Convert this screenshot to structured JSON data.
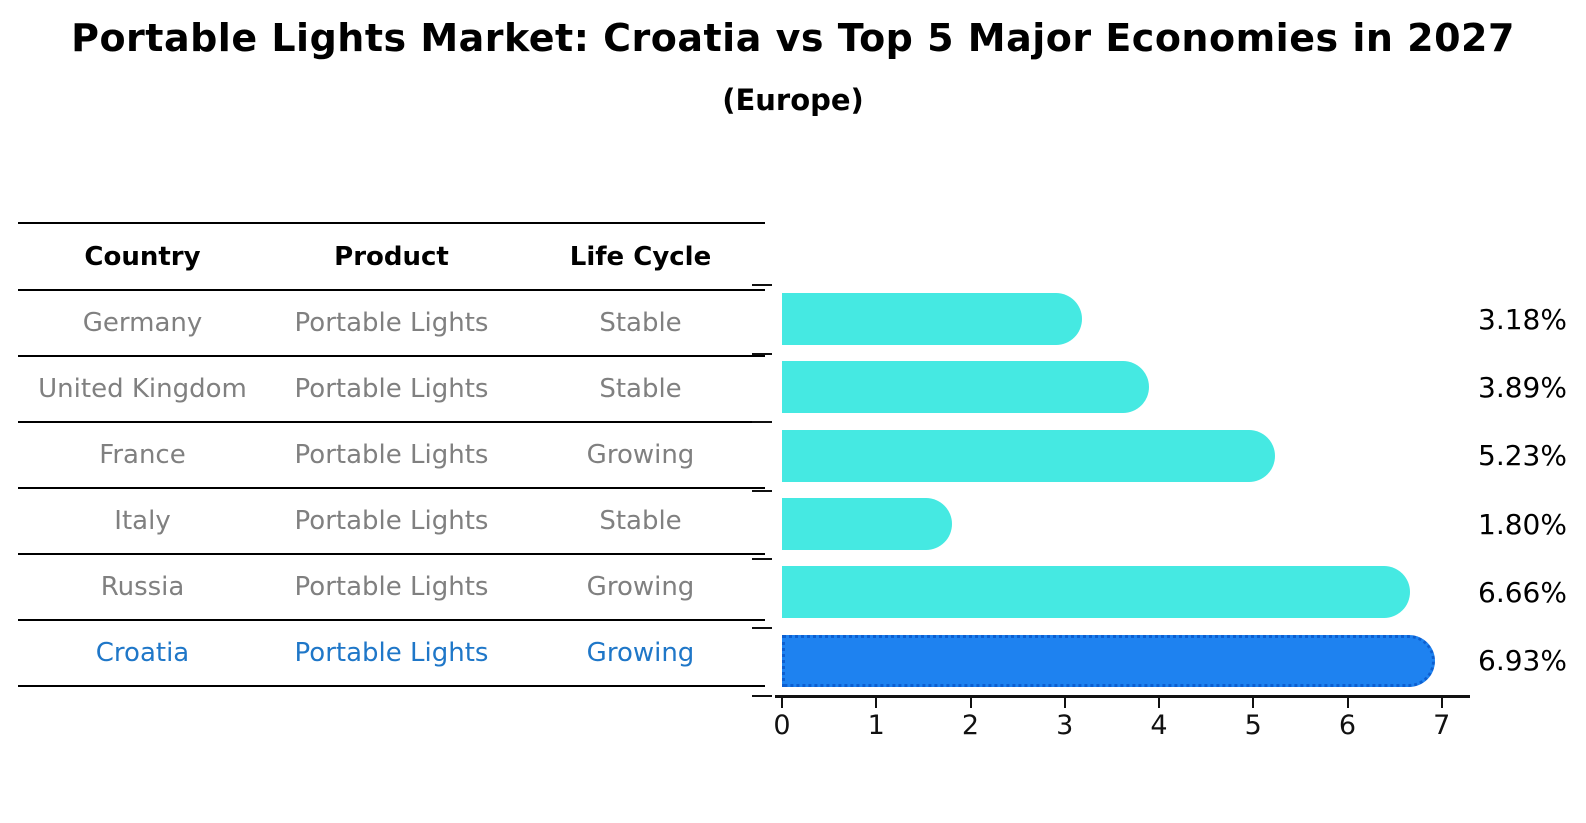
{
  "title": "Portable Lights Market: Croatia vs Top 5 Major Economies in 2027",
  "subtitle": "(Europe)",
  "table": {
    "headers": [
      "Country",
      "Product",
      "Life Cycle"
    ],
    "rows": [
      {
        "country": "Germany",
        "product": "Portable Lights",
        "life_cycle": "Stable",
        "highlight": false
      },
      {
        "country": "United Kingdom",
        "product": "Portable Lights",
        "life_cycle": "Stable",
        "highlight": false
      },
      {
        "country": "France",
        "product": "Portable Lights",
        "life_cycle": "Growing",
        "highlight": false
      },
      {
        "country": "Italy",
        "product": "Portable Lights",
        "life_cycle": "Stable",
        "highlight": false
      },
      {
        "country": "Russia",
        "product": "Portable Lights",
        "life_cycle": "Growing",
        "highlight": false
      },
      {
        "country": "Croatia",
        "product": "Portable Lights",
        "life_cycle": "Growing",
        "highlight": true
      }
    ]
  },
  "chart_data": {
    "type": "bar",
    "orientation": "horizontal",
    "title": "Portable Lights Market: Croatia vs Top 5 Major Economies in 2027 (Europe)",
    "categories": [
      "Germany",
      "United Kingdom",
      "France",
      "Italy",
      "Russia",
      "Croatia"
    ],
    "values": [
      3.18,
      3.89,
      5.23,
      1.8,
      6.66,
      6.93
    ],
    "value_labels": [
      "3.18%",
      "3.89%",
      "5.23%",
      "1.80%",
      "6.66%",
      "6.93%"
    ],
    "units": "%",
    "xlabel": "",
    "ylabel": "",
    "xlim": [
      0,
      7.3
    ],
    "xticks": [
      0,
      1,
      2,
      3,
      4,
      5,
      6,
      7
    ],
    "grid": false,
    "legend": "none",
    "highlight_index": 5,
    "bar_color": "#45e9e2",
    "highlight_bar_color": "#1e82f0",
    "highlight_border_color": "#0d5fd0",
    "highlight_text_color": "#1f77c8",
    "row_text_color": "#808080"
  }
}
